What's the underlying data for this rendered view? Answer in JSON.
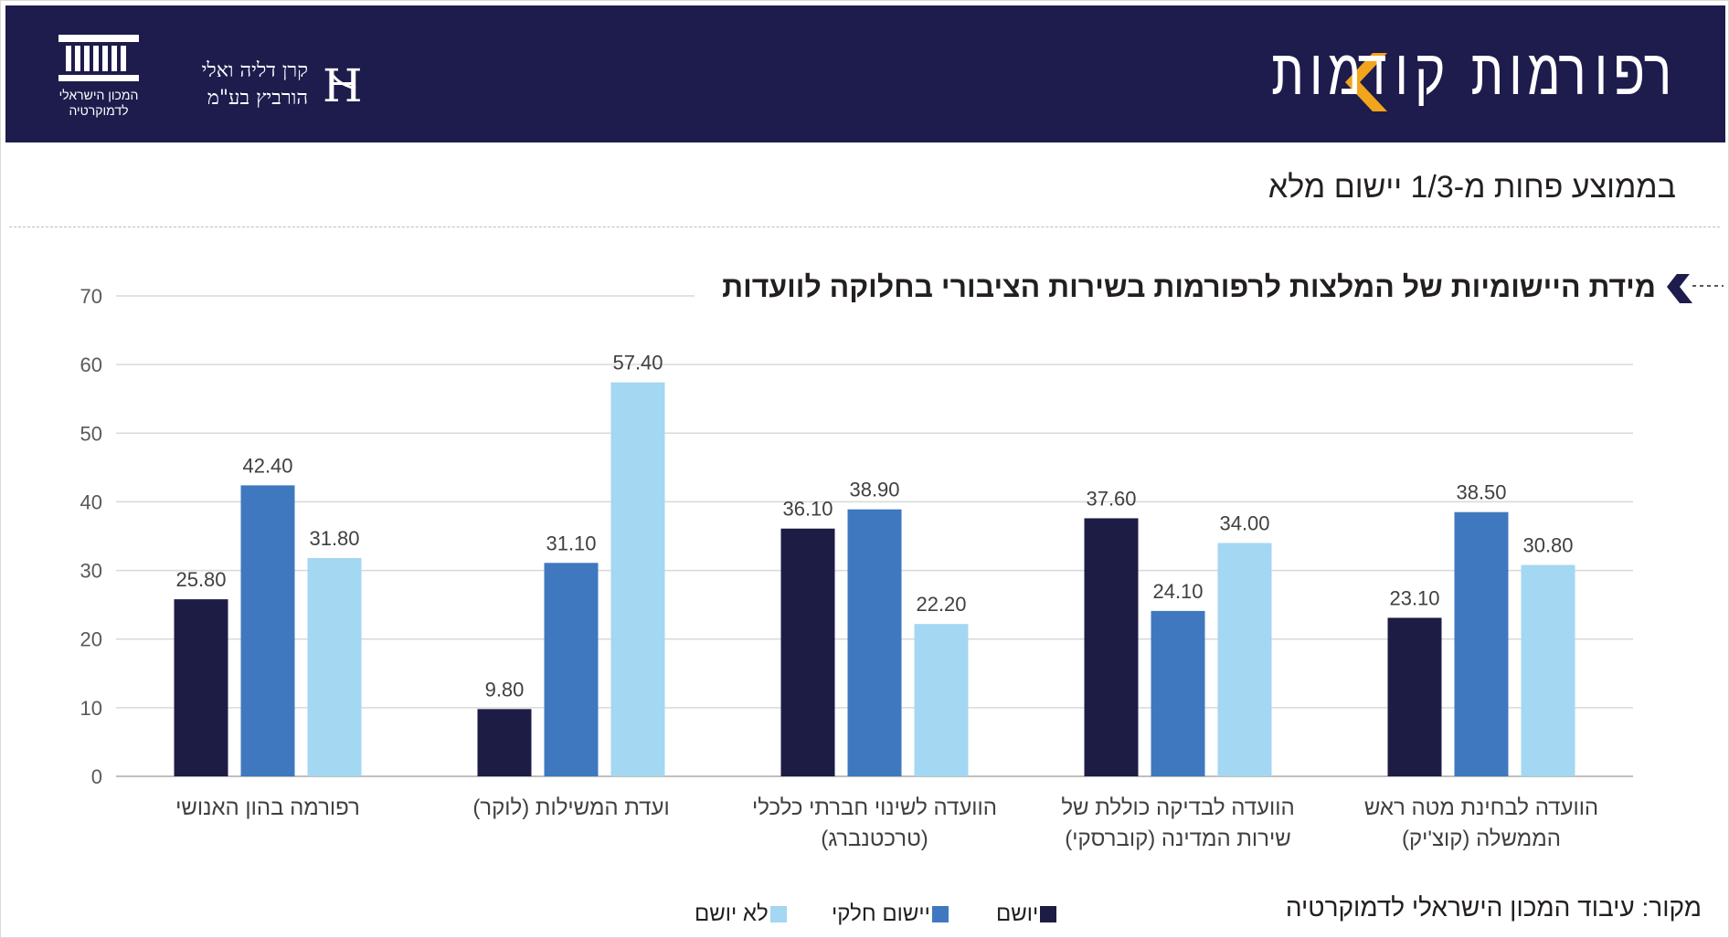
{
  "header": {
    "title": "רפורמות קודמות",
    "idi_logo_text": "המכון הישראלי לדמוקרטיה",
    "partner_logo_lines": [
      "קרן דליה ואלי",
      "הורביץ בע\"מ"
    ],
    "partner_monogram": "H"
  },
  "subtitle": "בממוצע פחות מ-1/3 יישום מלא",
  "source": "מקור: עיבוד המכון הישראלי לדמוקרטיה",
  "colors": {
    "header_bg": "#1d1c4d",
    "accent_orange": "#f2a51c",
    "implemented": "#1d1c44",
    "partial": "#3f78bf",
    "not_implemented": "#a3d7f2"
  },
  "chart_data": {
    "type": "bar",
    "title": "מידת היישומיות של המלצות לרפורמות בשירות הציבורי בחלוקה לוועדות",
    "categories": [
      [
        "רפורמה בהון האנושי"
      ],
      [
        "ועדת המשילות (לוקר)"
      ],
      [
        "הוועדה לשינוי חברתי כלכלי",
        "(טרכטנברג)"
      ],
      [
        "הוועדה  לבדיקה כוללת של",
        "שירות המדינה (קוברסקי)"
      ],
      [
        "הוועדה לבחינת מטה ראש",
        "הממשלה (קוצ'יק)"
      ]
    ],
    "series": [
      {
        "name": "יושם",
        "color": "#1d1c44",
        "values": [
          25.8,
          9.8,
          36.1,
          37.6,
          23.1
        ]
      },
      {
        "name": "יישום חלקי",
        "color": "#3f78bf",
        "values": [
          42.4,
          31.1,
          38.9,
          24.1,
          38.5
        ]
      },
      {
        "name": "לא יושם",
        "color": "#a3d7f2",
        "values": [
          31.8,
          57.4,
          22.2,
          34.0,
          30.8
        ]
      }
    ],
    "ylim": [
      0,
      70
    ],
    "yticks": [
      0,
      10,
      20,
      30,
      40,
      50,
      60,
      70
    ],
    "grid": true,
    "legend_position": "bottom",
    "value_label_format": "2 decimals"
  }
}
